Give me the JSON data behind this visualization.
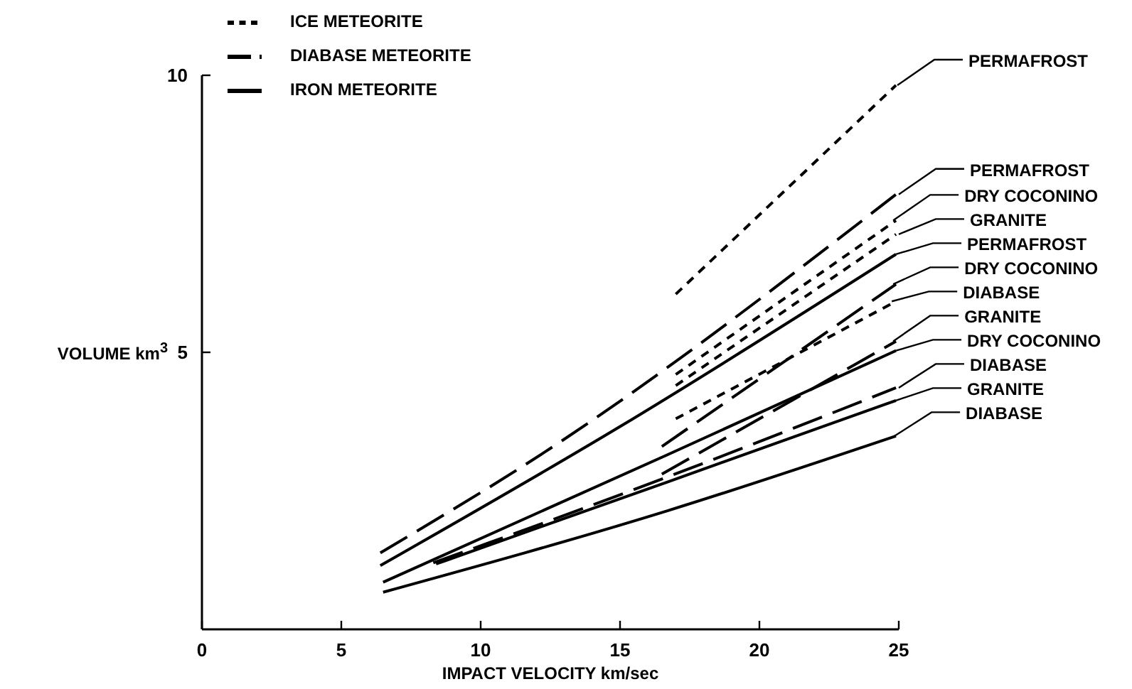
{
  "chart_data": {
    "type": "line",
    "xlabel": "IMPACT VELOCITY km/sec",
    "ylabel": "VOLUME km$^{3}$",
    "xlim": [
      0,
      25
    ],
    "xticks": [
      0,
      5,
      10,
      15,
      20,
      25
    ],
    "ylim": [
      0,
      10
    ],
    "yticks": [
      5,
      10
    ],
    "grid": false,
    "legend": "top left",
    "marker": "none",
    "series": [
      {
        "name": "ICE METEORITE",
        "color": "#000000",
        "line_style": "dotted",
        "x": [
          17,
          24.9
        ],
        "values": [
          6.05,
          9.82
        ]
      },
      {
        "color": "#000000",
        "line_style": "dotted",
        "x": [
          17,
          24.9
        ],
        "values": [
          4.6,
          7.38
        ]
      },
      {
        "color": "#000000",
        "line_style": "dotted",
        "x": [
          17,
          24.9
        ],
        "values": [
          4.4,
          7.13
        ]
      },
      {
        "color": "#000000",
        "line_style": "dotted",
        "x": [
          17,
          24.9
        ],
        "values": [
          3.8,
          5.92
        ]
      },
      {
        "name": "DIABASE METEORITE",
        "color": "#000000",
        "line_style": "dashed",
        "x": [
          6.4,
          12.3,
          24.9
        ],
        "values": [
          1.38,
          3.2,
          7.85
        ]
      },
      {
        "color": "#000000",
        "line_style": "dashed",
        "x": [
          16.5,
          24.9
        ],
        "values": [
          3.3,
          6.23
        ]
      },
      {
        "color": "#000000",
        "line_style": "dashed",
        "x": [
          16.5,
          24.9
        ],
        "values": [
          2.8,
          5.2
        ]
      },
      {
        "color": "#000000",
        "line_style": "dashed",
        "x": [
          8.3,
          16.7,
          24.9
        ],
        "values": [
          1.2,
          2.75,
          4.36
        ]
      },
      {
        "name": "IRON METEORITE",
        "color": "#000000",
        "line_style": "solid",
        "x": [
          6.4,
          15,
          24.9
        ],
        "values": [
          1.15,
          3.66,
          6.77
        ]
      },
      {
        "color": "#000000",
        "line_style": "solid",
        "x": [
          6.5,
          16.7,
          24.9
        ],
        "values": [
          0.85,
          3.15,
          5.03
        ]
      },
      {
        "color": "#000000",
        "line_style": "solid",
        "x": [
          8.4,
          16.7,
          24.9
        ],
        "values": [
          1.18,
          2.66,
          4.13
        ]
      },
      {
        "color": "#000000",
        "line_style": "solid",
        "x": [
          6.5,
          16.7,
          24.9
        ],
        "values": [
          0.67,
          2.14,
          3.49
        ]
      }
    ],
    "annotations": [
      {
        "text": "PERMAFROST",
        "x": 24.95,
        "y": 9.82
      },
      {
        "text": "PERMAFROST",
        "x": 25,
        "y": 7.85
      },
      {
        "text": "DRY COCONINO",
        "x": 24.8,
        "y": 7.38
      },
      {
        "text": "GRANITE",
        "x": 25,
        "y": 7.13
      },
      {
        "text": "PERMAFROST",
        "x": 24.9,
        "y": 6.77
      },
      {
        "text": "DRY COCONINO",
        "x": 24.8,
        "y": 6.23
      },
      {
        "text": "DIABASE",
        "x": 24.75,
        "y": 5.92
      },
      {
        "text": "GRANITE",
        "x": 24.8,
        "y": 5.2
      },
      {
        "text": "DRY COCONINO",
        "x": 24.9,
        "y": 5.03
      },
      {
        "text": "DIABASE",
        "x": 25,
        "y": 4.36
      },
      {
        "text": "GRANITE",
        "x": 24.9,
        "y": 4.13
      },
      {
        "text": "DIABASE",
        "x": 24.85,
        "y": 3.49
      }
    ]
  }
}
